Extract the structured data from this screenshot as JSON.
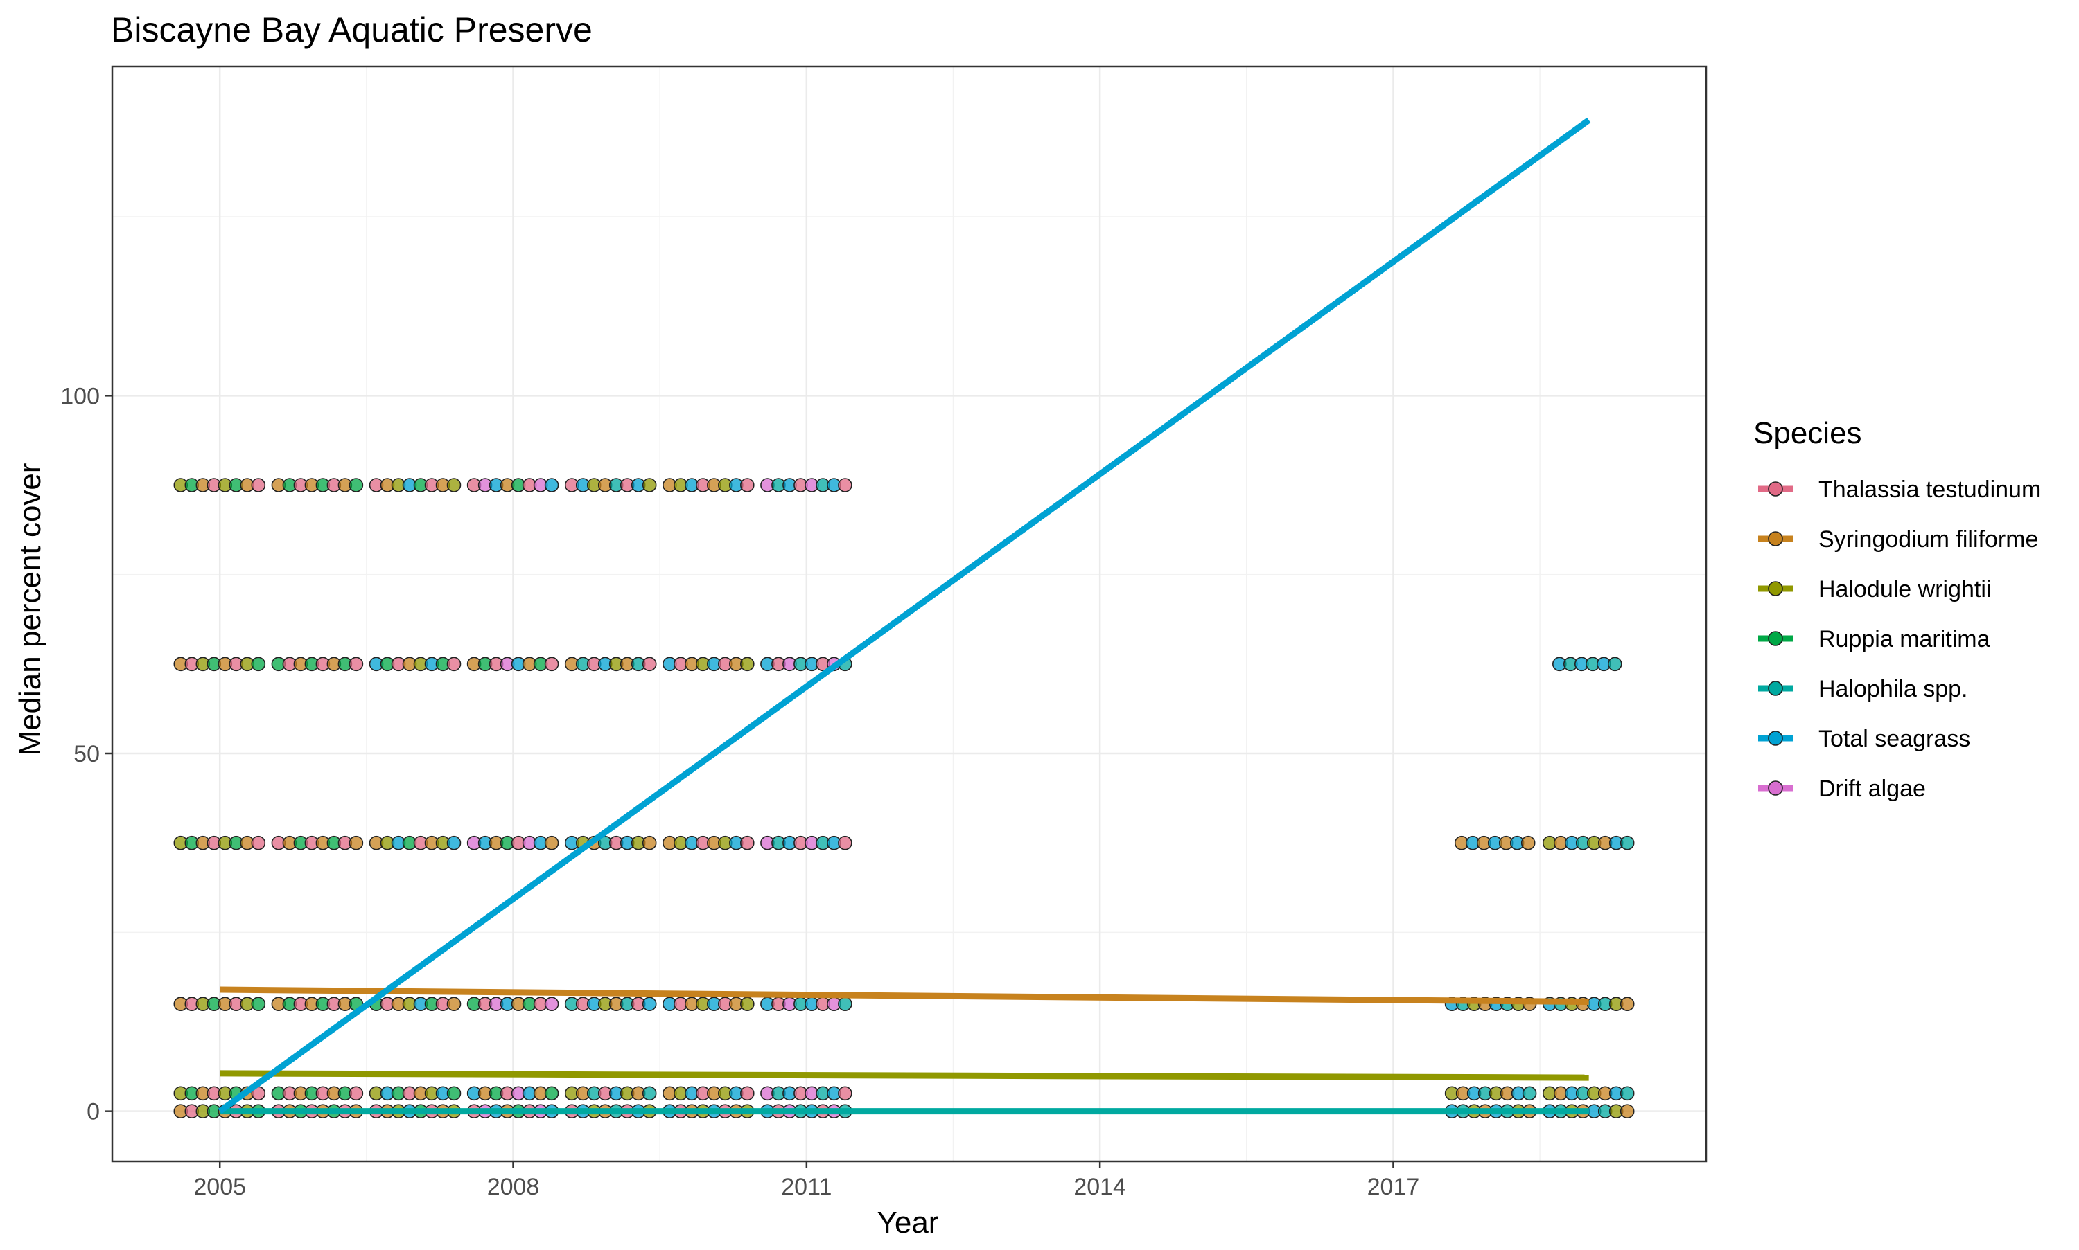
{
  "chart_data": {
    "type": "scatter",
    "title": "Biscayne Bay Aquatic Preserve",
    "xlabel": "Year",
    "ylabel": "Median percent cover",
    "xlim": [
      2003.9,
      2020.2
    ],
    "ylim": [
      -7,
      146
    ],
    "x_ticks": [
      2005,
      2008,
      2011,
      2014,
      2017
    ],
    "y_ticks": [
      0,
      50,
      100
    ],
    "grid": true,
    "legend_title": "Species",
    "legend_position": "right",
    "series": [
      {
        "name": "Thalassia testudinum",
        "color": "#E16A86",
        "trend": null
      },
      {
        "name": "Syringodium filiforme",
        "color": "#C7821E",
        "trend": {
          "x": [
            2005.0,
            2019.0
          ],
          "y": [
            17.0,
            15.3
          ]
        }
      },
      {
        "name": "Halodule wrightii",
        "color": "#909800",
        "trend": {
          "x": [
            2005.0,
            2019.0
          ],
          "y": [
            5.3,
            4.7
          ]
        }
      },
      {
        "name": "Ruppia maritima",
        "color": "#00A846",
        "trend": null
      },
      {
        "name": "Halophila spp.",
        "color": "#00A9A0",
        "trend": {
          "x": [
            2005.0,
            2019.0
          ],
          "y": [
            0.0,
            0.0
          ]
        }
      },
      {
        "name": "Total seagrass",
        "color": "#00A2D3",
        "trend": {
          "x": [
            2005.0,
            2019.0
          ],
          "y": [
            0.0,
            138.5
          ]
        }
      },
      {
        "name": "Drift algae",
        "color": "#D86ED0",
        "trend": null
      }
    ],
    "point_levels": [
      0,
      2.5,
      15,
      37.5,
      62.5,
      87.5
    ],
    "point_groups": [
      {
        "x_range": [
          2004.6,
          2005.4
        ],
        "levels": [
          0,
          2.5,
          15,
          37.5,
          62.5,
          87.5
        ],
        "series": [
          "Syringodium filiforme",
          "Thalassia testudinum",
          "Halodule wrightii",
          "Ruppia maritima"
        ]
      },
      {
        "x_range": [
          2005.6,
          2006.4
        ],
        "levels": [
          0,
          2.5,
          15,
          37.5,
          62.5,
          87.5
        ],
        "series": [
          "Thalassia testudinum",
          "Syringodium filiforme",
          "Ruppia maritima"
        ]
      },
      {
        "x_range": [
          2006.6,
          2007.4
        ],
        "levels": [
          0,
          2.5,
          15,
          37.5,
          62.5,
          87.5
        ],
        "series": [
          "Thalassia testudinum",
          "Syringodium filiforme",
          "Halodule wrightii",
          "Total seagrass",
          "Ruppia maritima"
        ]
      },
      {
        "x_range": [
          2007.6,
          2008.4
        ],
        "levels": [
          0,
          2.5,
          15,
          37.5,
          62.5,
          87.5
        ],
        "series": [
          "Thalassia testudinum",
          "Drift algae",
          "Total seagrass",
          "Syringodium filiforme",
          "Ruppia maritima"
        ]
      },
      {
        "x_range": [
          2008.6,
          2009.4
        ],
        "levels": [
          0,
          2.5,
          15,
          37.5,
          62.5,
          87.5
        ],
        "series": [
          "Thalassia testudinum",
          "Total seagrass",
          "Halodule wrightii",
          "Syringodium filiforme",
          "Halophila spp."
        ]
      },
      {
        "x_range": [
          2009.6,
          2010.4
        ],
        "levels": [
          0,
          2.5,
          15,
          37.5,
          62.5,
          87.5
        ],
        "series": [
          "Total seagrass",
          "Thalassia testudinum",
          "Syringodium filiforme",
          "Halodule wrightii"
        ]
      },
      {
        "x_range": [
          2010.6,
          2011.4
        ],
        "levels": [
          0,
          2.5,
          15,
          37.5,
          62.5,
          87.5
        ],
        "series": [
          "Total seagrass",
          "Thalassia testudinum",
          "Drift algae",
          "Halophila spp."
        ]
      },
      {
        "x_range": [
          2017.6,
          2018.5
        ],
        "levels": [
          0,
          2.5,
          15
        ],
        "series": [
          "Total seagrass",
          "Halophila spp.",
          "Halodule wrightii",
          "Syringodium filiforme"
        ]
      },
      {
        "x_range": [
          2017.7,
          2018.4
        ],
        "levels": [
          37.5
        ],
        "series": [
          "Syringodium filiforme",
          "Total seagrass"
        ]
      },
      {
        "x_range": [
          2018.6,
          2019.4
        ],
        "levels": [
          0,
          2.5,
          15,
          37.5
        ],
        "series": [
          "Total seagrass",
          "Halophila spp.",
          "Halodule wrightii",
          "Syringodium filiforme"
        ]
      },
      {
        "x_range": [
          2018.7,
          2019.3
        ],
        "levels": [
          62.5
        ],
        "series": [
          "Total seagrass",
          "Halophila spp."
        ]
      }
    ]
  }
}
